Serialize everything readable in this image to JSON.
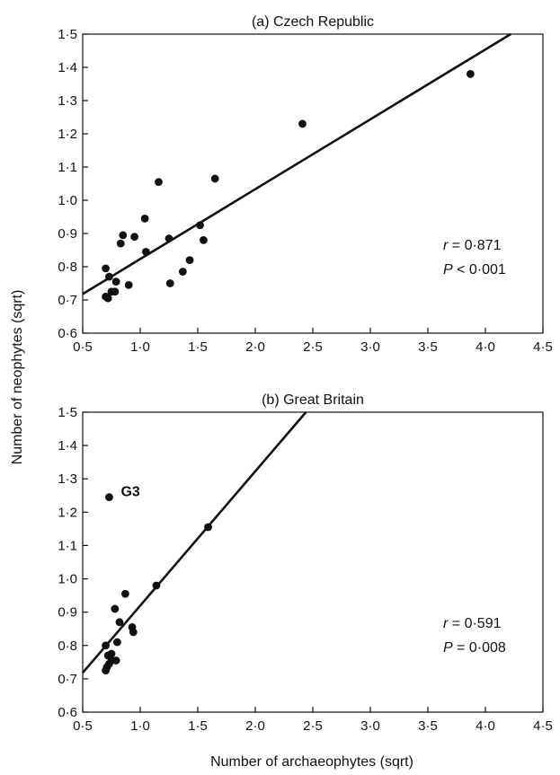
{
  "figure": {
    "ylabel": "Number of neophytes (sqrt)",
    "xlabel": "Number of archaeophytes (sqrt)"
  },
  "chart_data": [
    {
      "type": "scatter",
      "title": "(a) Czech Republic",
      "xlabel": "",
      "ylabel": "",
      "xlim": [
        0.5,
        4.5
      ],
      "ylim": [
        0.6,
        1.5
      ],
      "xticks": [
        "0·5",
        "1·0",
        "1·5",
        "2·0",
        "2·5",
        "3·0",
        "3·5",
        "4·0",
        "4·5"
      ],
      "yticks": [
        "0·6",
        "0·7",
        "0·8",
        "0·9",
        "1·0",
        "1·1",
        "1·2",
        "1·3",
        "1·4",
        "1·5"
      ],
      "series": [
        {
          "points": [
            [
              0.7,
              0.795
            ],
            [
              0.73,
              0.77
            ],
            [
              0.7,
              0.71
            ],
            [
              0.72,
              0.705
            ],
            [
              0.75,
              0.725
            ],
            [
              0.79,
              0.755
            ],
            [
              0.78,
              0.725
            ],
            [
              0.83,
              0.87
            ],
            [
              0.85,
              0.895
            ],
            [
              0.9,
              0.745
            ],
            [
              0.95,
              0.89
            ],
            [
              1.04,
              0.945
            ],
            [
              1.05,
              0.845
            ],
            [
              1.16,
              1.055
            ],
            [
              1.25,
              0.885
            ],
            [
              1.26,
              0.75
            ],
            [
              1.37,
              0.785
            ],
            [
              1.43,
              0.82
            ],
            [
              1.52,
              0.925
            ],
            [
              1.55,
              0.88
            ],
            [
              1.65,
              1.065
            ],
            [
              2.41,
              1.23
            ],
            [
              3.87,
              1.38
            ]
          ]
        }
      ],
      "fit_line": [
        [
          0.5,
          0.718
        ],
        [
          4.22,
          1.5
        ]
      ],
      "annotations": {
        "r_symbol": "r",
        "r_text": " = 0·871",
        "p_symbol": "P",
        "p_text": " < 0·001"
      },
      "grid": false
    },
    {
      "type": "scatter",
      "title": "(b) Great Britain",
      "xlabel": "",
      "ylabel": "",
      "xlim": [
        0.5,
        4.5
      ],
      "ylim": [
        0.6,
        1.5
      ],
      "xticks": [
        "0·5",
        "1·0",
        "1·5",
        "2·0",
        "2·5",
        "3·0",
        "3·5",
        "4·0",
        "4·5"
      ],
      "yticks": [
        "0·6",
        "0·7",
        "0·8",
        "0·9",
        "1·0",
        "1·1",
        "1·2",
        "1·3",
        "1·4",
        "1·5"
      ],
      "series": [
        {
          "points": [
            [
              0.73,
              1.245
            ],
            [
              0.7,
              0.8
            ],
            [
              0.72,
              0.77
            ],
            [
              0.75,
              0.775
            ],
            [
              0.7,
              0.725
            ],
            [
              0.71,
              0.735
            ],
            [
              0.73,
              0.745
            ],
            [
              0.75,
              0.755
            ],
            [
              0.79,
              0.755
            ],
            [
              0.8,
              0.81
            ],
            [
              0.82,
              0.87
            ],
            [
              0.78,
              0.91
            ],
            [
              0.87,
              0.955
            ],
            [
              0.93,
              0.855
            ],
            [
              0.94,
              0.84
            ],
            [
              1.14,
              0.98
            ],
            [
              1.59,
              1.155
            ]
          ]
        }
      ],
      "fit_line": [
        [
          0.5,
          0.718
        ],
        [
          2.44,
          1.5
        ]
      ],
      "point_labels": [
        {
          "text": "G3",
          "x": 0.73,
          "y": 1.245
        }
      ],
      "annotations": {
        "r_symbol": "r",
        "r_text": " = 0·591",
        "p_symbol": "P",
        "p_text": " = 0·008"
      },
      "grid": false
    }
  ]
}
